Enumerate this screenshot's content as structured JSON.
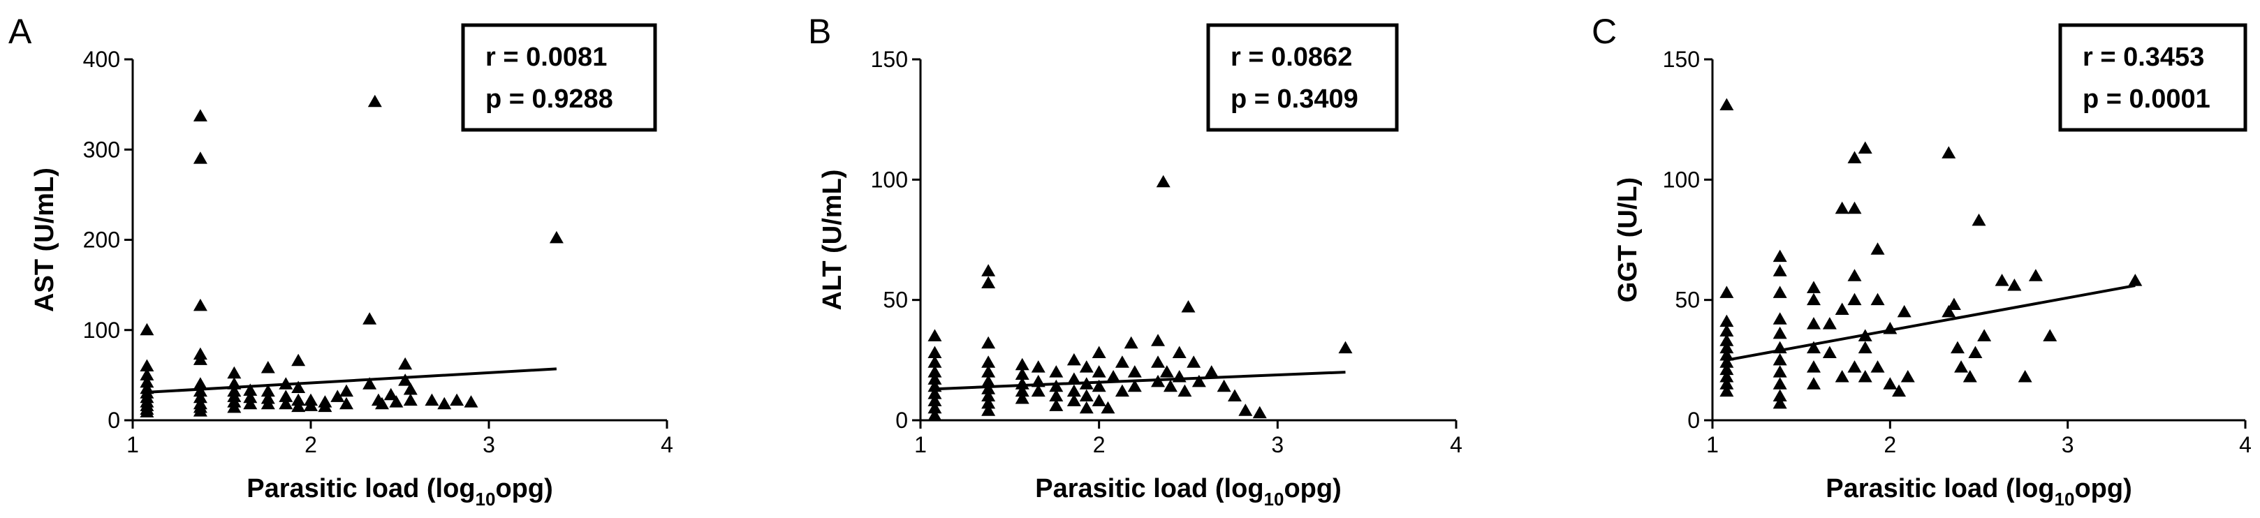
{
  "figure": {
    "colors": {
      "marker": "#000000",
      "axis": "#000000",
      "background": "#ffffff"
    }
  },
  "chart_data": [
    {
      "panel": "A",
      "type": "scatter",
      "xlabel": "Parasitic load (log",
      "xlabel_sub": "10",
      "xlabel_tail": "opg)",
      "ylabel": "AST (U/mL)",
      "xlim": [
        1,
        4
      ],
      "ylim": [
        0,
        400
      ],
      "xticks": [
        1,
        2,
        3,
        4
      ],
      "yticks": [
        0,
        100,
        200,
        300,
        400
      ],
      "stats": {
        "r": "r = 0.0081",
        "p": "p = 0.9288"
      },
      "regression": {
        "x": [
          1.08,
          3.38
        ],
        "y": [
          31,
          57
        ]
      },
      "points": [
        [
          1.08,
          100
        ],
        [
          1.08,
          60
        ],
        [
          1.08,
          50
        ],
        [
          1.08,
          42
        ],
        [
          1.08,
          35
        ],
        [
          1.08,
          30
        ],
        [
          1.08,
          25
        ],
        [
          1.08,
          20
        ],
        [
          1.08,
          16
        ],
        [
          1.08,
          12
        ],
        [
          1.08,
          9
        ],
        [
          1.38,
          337
        ],
        [
          1.38,
          290
        ],
        [
          1.38,
          127
        ],
        [
          1.38,
          73
        ],
        [
          1.38,
          67
        ],
        [
          1.38,
          40
        ],
        [
          1.38,
          32
        ],
        [
          1.38,
          25
        ],
        [
          1.38,
          18
        ],
        [
          1.38,
          14
        ],
        [
          1.38,
          10
        ],
        [
          1.57,
          52
        ],
        [
          1.57,
          40
        ],
        [
          1.57,
          32
        ],
        [
          1.57,
          26
        ],
        [
          1.57,
          20
        ],
        [
          1.57,
          14
        ],
        [
          1.66,
          33
        ],
        [
          1.66,
          25
        ],
        [
          1.66,
          18
        ],
        [
          1.76,
          58
        ],
        [
          1.76,
          32
        ],
        [
          1.76,
          24
        ],
        [
          1.76,
          18
        ],
        [
          1.86,
          40
        ],
        [
          1.86,
          26
        ],
        [
          1.86,
          18
        ],
        [
          1.93,
          66
        ],
        [
          1.93,
          36
        ],
        [
          1.93,
          22
        ],
        [
          1.93,
          15
        ],
        [
          2.0,
          22
        ],
        [
          2.0,
          16
        ],
        [
          2.08,
          20
        ],
        [
          2.08,
          15
        ],
        [
          2.15,
          26
        ],
        [
          2.2,
          32
        ],
        [
          2.2,
          18
        ],
        [
          2.33,
          112
        ],
        [
          2.33,
          40
        ],
        [
          2.36,
          353
        ],
        [
          2.38,
          22
        ],
        [
          2.4,
          18
        ],
        [
          2.45,
          28
        ],
        [
          2.48,
          20
        ],
        [
          2.53,
          62
        ],
        [
          2.53,
          44
        ],
        [
          2.56,
          34
        ],
        [
          2.56,
          22
        ],
        [
          2.68,
          22
        ],
        [
          2.75,
          18
        ],
        [
          2.82,
          22
        ],
        [
          2.9,
          20
        ],
        [
          3.38,
          202
        ]
      ]
    },
    {
      "panel": "B",
      "type": "scatter",
      "xlabel": "Parasitic load (log",
      "xlabel_sub": "10",
      "xlabel_tail": "opg)",
      "ylabel": "ALT (U/mL)",
      "xlim": [
        1,
        4
      ],
      "ylim": [
        0,
        150
      ],
      "xticks": [
        1,
        2,
        3,
        4
      ],
      "yticks": [
        0,
        50,
        100,
        150
      ],
      "stats": {
        "r": "r = 0.0862",
        "p": "p = 0.3409"
      },
      "regression": {
        "x": [
          1.08,
          3.38
        ],
        "y": [
          13,
          20
        ]
      },
      "points": [
        [
          1.08,
          35
        ],
        [
          1.08,
          28
        ],
        [
          1.08,
          24
        ],
        [
          1.08,
          20
        ],
        [
          1.08,
          17
        ],
        [
          1.08,
          14
        ],
        [
          1.08,
          11
        ],
        [
          1.08,
          8
        ],
        [
          1.08,
          5
        ],
        [
          1.08,
          2
        ],
        [
          1.38,
          62
        ],
        [
          1.38,
          57
        ],
        [
          1.38,
          32
        ],
        [
          1.38,
          24
        ],
        [
          1.38,
          20
        ],
        [
          1.38,
          16
        ],
        [
          1.38,
          13
        ],
        [
          1.38,
          10
        ],
        [
          1.38,
          7
        ],
        [
          1.38,
          4
        ],
        [
          1.57,
          23
        ],
        [
          1.57,
          19
        ],
        [
          1.57,
          15
        ],
        [
          1.57,
          12
        ],
        [
          1.57,
          9
        ],
        [
          1.66,
          22
        ],
        [
          1.66,
          16
        ],
        [
          1.66,
          12
        ],
        [
          1.76,
          20
        ],
        [
          1.76,
          14
        ],
        [
          1.76,
          10
        ],
        [
          1.76,
          6
        ],
        [
          1.86,
          25
        ],
        [
          1.86,
          17
        ],
        [
          1.86,
          12
        ],
        [
          1.86,
          8
        ],
        [
          1.93,
          22
        ],
        [
          1.93,
          15
        ],
        [
          1.93,
          10
        ],
        [
          1.93,
          5
        ],
        [
          2.0,
          28
        ],
        [
          2.0,
          20
        ],
        [
          2.0,
          14
        ],
        [
          2.0,
          8
        ],
        [
          2.05,
          5
        ],
        [
          2.08,
          18
        ],
        [
          2.13,
          24
        ],
        [
          2.13,
          12
        ],
        [
          2.18,
          32
        ],
        [
          2.2,
          20
        ],
        [
          2.2,
          14
        ],
        [
          2.33,
          33
        ],
        [
          2.33,
          24
        ],
        [
          2.33,
          16
        ],
        [
          2.36,
          99
        ],
        [
          2.38,
          20
        ],
        [
          2.4,
          14
        ],
        [
          2.45,
          28
        ],
        [
          2.45,
          18
        ],
        [
          2.48,
          12
        ],
        [
          2.5,
          47
        ],
        [
          2.53,
          24
        ],
        [
          2.56,
          16
        ],
        [
          2.63,
          20
        ],
        [
          2.7,
          14
        ],
        [
          2.76,
          10
        ],
        [
          2.82,
          4
        ],
        [
          2.9,
          3
        ],
        [
          3.38,
          30
        ]
      ]
    },
    {
      "panel": "C",
      "type": "scatter",
      "xlabel": "Parasitic load (log",
      "xlabel_sub": "10",
      "xlabel_tail": "opg)",
      "ylabel": "GGT (U/L)",
      "xlim": [
        1,
        4
      ],
      "ylim": [
        0,
        150
      ],
      "xticks": [
        1,
        2,
        3,
        4
      ],
      "yticks": [
        0,
        50,
        100,
        150
      ],
      "stats": {
        "r": "r = 0.3453",
        "p": "p = 0.0001"
      },
      "regression": {
        "x": [
          1.08,
          3.38
        ],
        "y": [
          25,
          56
        ]
      },
      "points": [
        [
          1.08,
          131
        ],
        [
          1.08,
          53
        ],
        [
          1.08,
          41
        ],
        [
          1.08,
          37
        ],
        [
          1.08,
          33
        ],
        [
          1.08,
          30
        ],
        [
          1.08,
          27
        ],
        [
          1.08,
          24
        ],
        [
          1.08,
          21
        ],
        [
          1.08,
          18
        ],
        [
          1.08,
          15
        ],
        [
          1.08,
          12
        ],
        [
          1.38,
          68
        ],
        [
          1.38,
          62
        ],
        [
          1.38,
          53
        ],
        [
          1.38,
          42
        ],
        [
          1.38,
          36
        ],
        [
          1.38,
          30
        ],
        [
          1.38,
          25
        ],
        [
          1.38,
          20
        ],
        [
          1.38,
          15
        ],
        [
          1.38,
          10
        ],
        [
          1.38,
          7
        ],
        [
          1.57,
          55
        ],
        [
          1.57,
          50
        ],
        [
          1.57,
          40
        ],
        [
          1.57,
          30
        ],
        [
          1.57,
          22
        ],
        [
          1.57,
          15
        ],
        [
          1.66,
          40
        ],
        [
          1.66,
          28
        ],
        [
          1.73,
          88
        ],
        [
          1.73,
          46
        ],
        [
          1.73,
          18
        ],
        [
          1.8,
          109
        ],
        [
          1.8,
          88
        ],
        [
          1.8,
          60
        ],
        [
          1.8,
          50
        ],
        [
          1.8,
          22
        ],
        [
          1.86,
          113
        ],
        [
          1.86,
          35
        ],
        [
          1.86,
          30
        ],
        [
          1.86,
          18
        ],
        [
          1.93,
          71
        ],
        [
          1.93,
          50
        ],
        [
          1.93,
          22
        ],
        [
          2.0,
          38
        ],
        [
          2.0,
          15
        ],
        [
          2.05,
          12
        ],
        [
          2.08,
          45
        ],
        [
          2.1,
          18
        ],
        [
          2.33,
          111
        ],
        [
          2.33,
          45
        ],
        [
          2.36,
          48
        ],
        [
          2.38,
          30
        ],
        [
          2.4,
          22
        ],
        [
          2.45,
          18
        ],
        [
          2.48,
          28
        ],
        [
          2.5,
          83
        ],
        [
          2.53,
          35
        ],
        [
          2.63,
          58
        ],
        [
          2.7,
          56
        ],
        [
          2.76,
          18
        ],
        [
          2.82,
          60
        ],
        [
          2.9,
          35
        ],
        [
          3.38,
          58
        ]
      ]
    }
  ]
}
